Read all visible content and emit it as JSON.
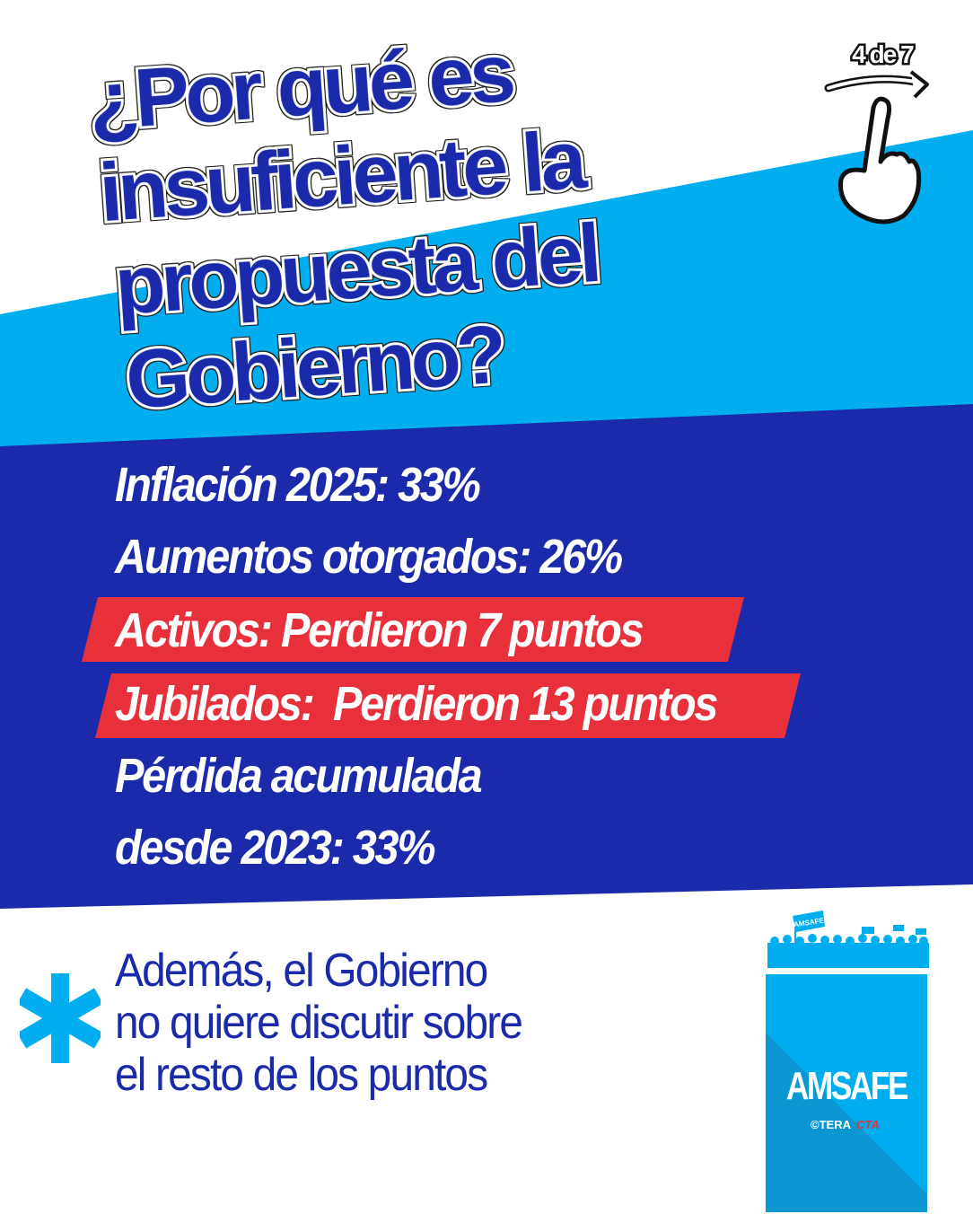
{
  "colors": {
    "light_blue": "#00aeef",
    "dark_blue": "#1b2aab",
    "red": "#e8303a",
    "white": "#ffffff"
  },
  "title": {
    "lines": [
      "¿Por qué es",
      "insuficiente la",
      "propuesta del",
      "Gobierno?"
    ]
  },
  "pager": {
    "label": "4 de 7",
    "icon": "swipe-hand-icon"
  },
  "facts": [
    {
      "text": "Inflación 2025: 33%",
      "highlight": false
    },
    {
      "text": "Aumentos otorgados: 26%",
      "highlight": false
    },
    {
      "text": "Activos: Perdieron 7 puntos",
      "highlight": true
    },
    {
      "text": "Jubilados:  Perdieron 13 puntos",
      "highlight": true
    },
    {
      "text": "Pérdida acumulada",
      "highlight": false
    },
    {
      "text": "desde 2023: 33%",
      "highlight": false
    }
  ],
  "note": {
    "icon": "asterisk-icon",
    "lines": [
      "Además, el Gobierno",
      "no quiere discutir sobre",
      "el resto de los puntos"
    ]
  },
  "logo": {
    "name": "AMSAFE",
    "banner": "AMSAFE",
    "ctera": "©TERA",
    "cta": "CTA"
  }
}
